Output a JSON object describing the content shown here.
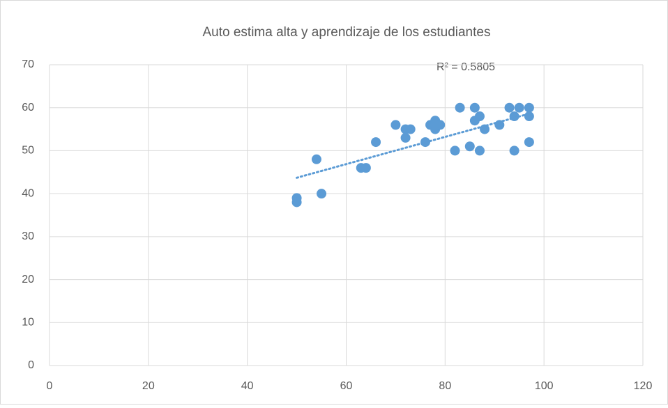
{
  "chart_data": {
    "type": "scatter",
    "title": "Auto estima alta y aprendizaje de los estudiantes",
    "annotation": "R² = 0.5805",
    "x": [
      50,
      50,
      54,
      55,
      63,
      64,
      66,
      70,
      72,
      73,
      72,
      76,
      77,
      78,
      78,
      79,
      78,
      82,
      83,
      85,
      86,
      86,
      87,
      87,
      88,
      91,
      93,
      94,
      94,
      95,
      97,
      97,
      97
    ],
    "values": [
      39,
      38,
      48,
      40,
      46,
      46,
      52,
      56,
      55,
      55,
      53,
      52,
      56,
      57,
      55,
      56,
      56,
      50,
      60,
      51,
      60,
      57,
      58,
      50,
      55,
      56,
      60,
      58,
      50,
      60,
      60,
      58,
      52
    ],
    "color": "#5b9bd5",
    "trendline": {
      "x": [
        50,
        97
      ],
      "values": [
        43.7,
        58.6
      ]
    },
    "xlim": [
      0,
      120
    ],
    "xticks": [
      0,
      20,
      40,
      60,
      80,
      100,
      120
    ],
    "ylim": [
      0,
      70
    ],
    "yticks": [
      0,
      10,
      20,
      30,
      40,
      50,
      60,
      70
    ],
    "grid": true
  }
}
